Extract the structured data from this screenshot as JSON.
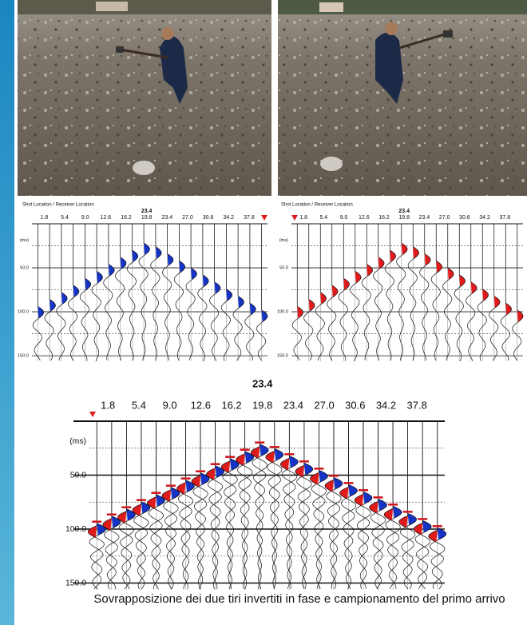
{
  "panels": [
    {
      "header": "Shot Location / Receiver Location",
      "center_label": "23.4",
      "x_labels": [
        "1.8",
        "5.4",
        "9.0",
        "12.6",
        "16.2",
        "19.8",
        "23.4",
        "27.0",
        "30.6",
        "34.2",
        "37.8"
      ],
      "y_unit": "(ms)",
      "y_labels": [
        "50.0",
        "100.0",
        "150.0"
      ]
    },
    {
      "header": "Shot Location / Receiver Location",
      "center_label": "23.4",
      "x_labels": [
        "1.8",
        "5.4",
        "9.0",
        "12.6",
        "16.2",
        "19.8",
        "23.4",
        "27.0",
        "30.6",
        "34.2",
        "37.8"
      ],
      "y_unit": "(ms)",
      "y_labels": [
        "50.0",
        "100.0",
        "150.0"
      ]
    },
    {
      "center_label": "23.4",
      "x_labels": [
        "1.8",
        "5.4",
        "9.0",
        "12.6",
        "16.2",
        "19.8",
        "23.4",
        "27.0",
        "30.6",
        "34.2",
        "37.8"
      ],
      "y_unit": "(ms)",
      "y_labels": [
        "50.0",
        "100.0",
        "150.0"
      ]
    }
  ],
  "caption": "Sovrapposizione dei due tiri invertiti in fase e campionamento del primo arrivo"
}
